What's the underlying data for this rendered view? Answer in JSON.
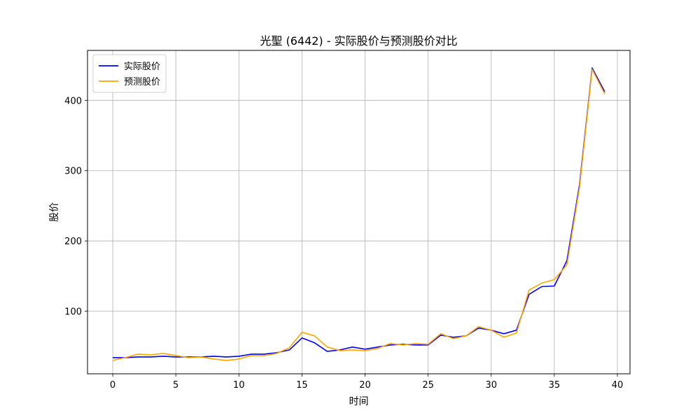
{
  "chart_data": {
    "type": "line",
    "title": "光聖 (6442) - 实际股价与预测股价对比",
    "xlabel": "时间",
    "ylabel": "股价",
    "xlim": [
      -2,
      41
    ],
    "ylim": [
      11,
      471
    ],
    "xticks": [
      0,
      5,
      10,
      15,
      20,
      25,
      30,
      35,
      40
    ],
    "yticks": [
      100,
      200,
      300,
      400
    ],
    "grid": true,
    "legend_position": "upper-left",
    "x": [
      0,
      1,
      2,
      3,
      4,
      5,
      6,
      7,
      8,
      9,
      10,
      11,
      12,
      13,
      14,
      15,
      16,
      17,
      18,
      19,
      20,
      21,
      22,
      23,
      24,
      25,
      26,
      27,
      28,
      29,
      30,
      31,
      32,
      33,
      34,
      35,
      36,
      37,
      38,
      39
    ],
    "series": [
      {
        "name": "实际股价",
        "color": "#0000ff",
        "values": [
          34,
          34,
          35,
          35,
          36,
          35,
          35,
          35,
          36,
          35,
          36,
          39,
          39,
          41,
          45,
          62,
          55,
          43,
          45,
          49,
          46,
          49,
          52,
          53,
          52,
          52,
          66,
          63,
          65,
          76,
          73,
          68,
          73,
          124,
          135,
          136,
          172,
          280,
          446,
          412
        ]
      },
      {
        "name": "预测股价",
        "color": "#ffa500",
        "values": [
          30,
          34,
          39,
          38,
          40,
          37,
          34,
          35,
          32,
          30,
          32,
          37,
          37,
          40,
          48,
          70,
          65,
          49,
          44,
          45,
          44,
          47,
          54,
          52,
          54,
          53,
          68,
          61,
          65,
          78,
          73,
          63,
          69,
          130,
          140,
          145,
          166,
          276,
          444,
          409
        ]
      }
    ]
  }
}
